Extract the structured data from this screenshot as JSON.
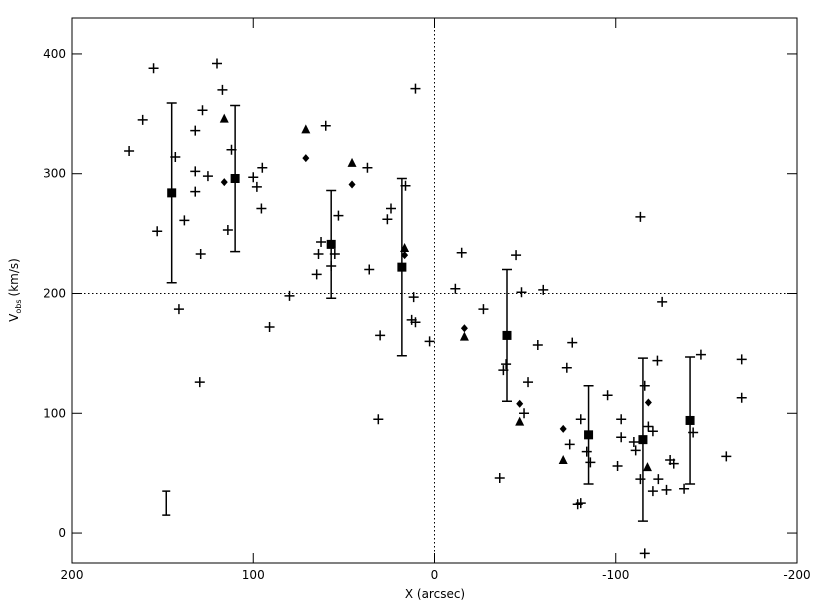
{
  "chart_data": {
    "type": "scatter",
    "x_label": "X (arcsec)",
    "y_label": {
      "main": "V",
      "sub": "obs",
      "rest": "(km/s)"
    },
    "xlim": [
      200,
      -200
    ],
    "ylim": [
      -25,
      430
    ],
    "xticks": [
      200,
      100,
      0,
      -100,
      -200
    ],
    "yticks": [
      0,
      100,
      200,
      300,
      400
    ],
    "hlines": [
      200
    ],
    "vlines": [
      0
    ],
    "scale_bar": {
      "x": 148,
      "y": 25,
      "err": 10
    },
    "series": [
      {
        "marker": "plus",
        "color": "#000",
        "x": [
          168.5,
          161,
          155,
          153,
          143,
          141,
          138,
          132,
          132,
          129,
          128,
          129.5,
          132,
          125,
          120,
          117,
          114,
          112,
          100,
          98,
          95,
          95.5,
          91,
          80,
          65,
          64,
          62.6,
          60,
          57,
          55,
          53,
          37,
          36,
          30,
          31,
          26,
          24,
          16,
          12.6,
          11.5,
          10.5,
          10.5,
          2.7,
          -11.5,
          -15,
          -27,
          -36,
          -38,
          -39.5,
          -45,
          -48,
          -49.4,
          -51.6,
          -57,
          -60,
          -73,
          -74.6,
          -76,
          -79,
          -80.7,
          -80.7,
          -84,
          -86,
          -95.5,
          -101,
          -103,
          -103,
          -110,
          -111,
          -113.6,
          -113.6,
          -116,
          -118,
          -120.5,
          -120.5,
          -123,
          -123.5,
          -125.6,
          -128,
          -130,
          -132,
          -137.7,
          -142.7,
          -147,
          -161,
          -169.5,
          -169.5,
          -116
        ],
        "values": [
          319,
          345,
          388,
          252,
          314,
          187,
          261,
          302,
          336,
          233,
          353,
          126,
          285,
          298,
          392,
          370,
          253,
          320,
          297,
          289,
          305,
          271,
          172,
          198,
          216,
          233,
          243,
          340,
          223,
          233,
          265,
          305,
          220,
          165,
          95,
          262,
          271,
          290,
          178,
          197,
          176,
          371,
          160,
          204,
          234,
          187,
          46,
          136,
          141,
          232,
          201,
          100,
          126,
          157,
          203,
          138,
          74,
          159,
          24,
          25,
          95,
          68,
          59,
          115,
          56,
          95,
          80,
          76,
          69,
          264,
          45,
          123,
          89,
          35,
          85,
          144,
          45,
          193,
          36,
          61,
          58,
          37,
          84,
          149,
          64,
          145,
          113,
          -17
        ]
      },
      {
        "marker": "diamond",
        "color": "#000",
        "x": [
          71,
          116,
          45.5,
          16.5,
          -16.5,
          -47,
          -71,
          -118
        ],
        "values": [
          313,
          293,
          291,
          232,
          171,
          108,
          87,
          109
        ]
      },
      {
        "marker": "triangle",
        "color": "#000",
        "x": [
          116,
          71,
          45.5,
          16.5,
          -16.5,
          -47,
          -71,
          -117.5
        ],
        "values": [
          346,
          337,
          309,
          238,
          164,
          93,
          61,
          55
        ]
      },
      {
        "marker": "square",
        "color": "#000",
        "x": [
          145,
          110,
          57,
          18,
          -40,
          -85,
          -115,
          -141
        ],
        "values": [
          284,
          296,
          241,
          222,
          165,
          82,
          78,
          94
        ],
        "errors": [
          75,
          61,
          45,
          74,
          55,
          41,
          68,
          53
        ]
      }
    ]
  }
}
